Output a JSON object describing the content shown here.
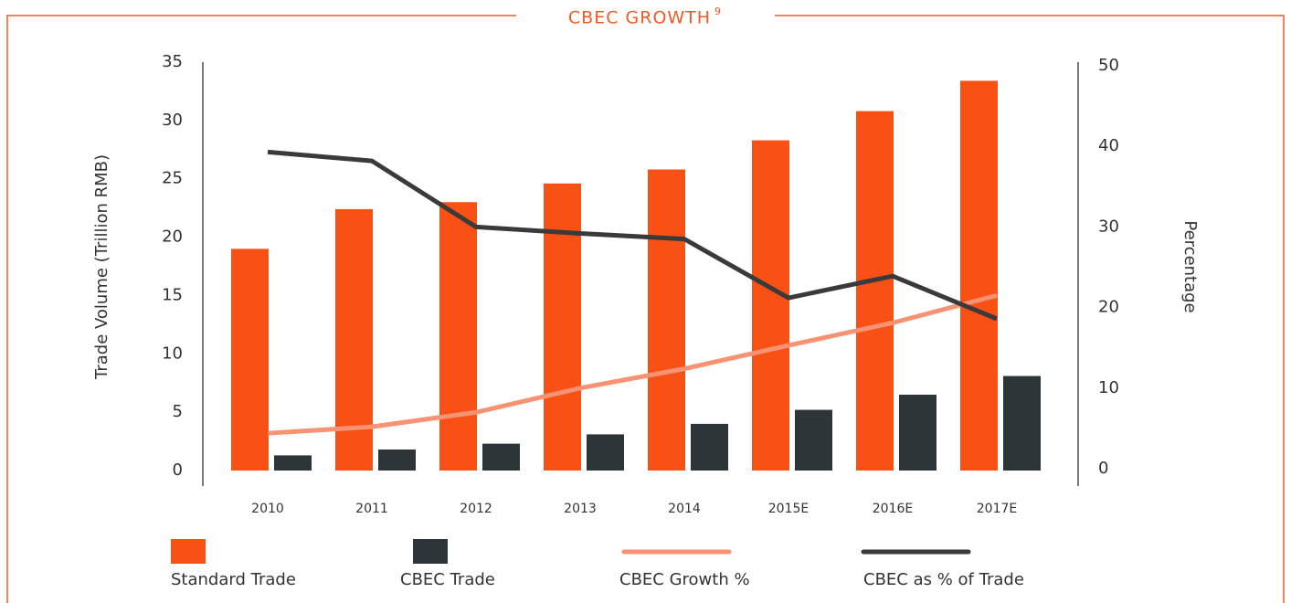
{
  "chart_data": {
    "type": "combo",
    "title": "CBEC GROWTH",
    "title_footnote": "9",
    "y_label": "Trade Volume (Trillion RMB)",
    "y2_label": "Percentage",
    "categories": [
      "2010",
      "2011",
      "2012",
      "2013",
      "2014",
      "2015E",
      "2016E",
      "2017E"
    ],
    "series": [
      {
        "name": "Standard Trade",
        "type": "bar",
        "color": "#f95016",
        "axis": "y",
        "values": [
          19.0,
          22.4,
          23.0,
          24.6,
          25.8,
          28.3,
          30.8,
          33.4
        ]
      },
      {
        "name": "CBEC Trade",
        "type": "bar",
        "color": "#2d3539",
        "axis": "y",
        "values": [
          1.3,
          1.8,
          2.3,
          3.1,
          4.0,
          5.2,
          6.5,
          8.1
        ]
      },
      {
        "name": "CBEC Growth %",
        "type": "line",
        "color": "#f79272",
        "axis": "y2",
        "values": [
          4.4,
          5.2,
          7.0,
          10.0,
          12.4,
          15.3,
          18.1,
          21.5
        ]
      },
      {
        "name": "CBEC as % of Trade",
        "type": "line",
        "color": "#3a3a3a",
        "axis": "y2",
        "values": [
          39.3,
          38.2,
          30.0,
          29.2,
          28.5,
          21.2,
          23.9,
          18.6
        ]
      }
    ],
    "ylim": [
      0,
      35
    ],
    "yticks": [
      0,
      5,
      10,
      15,
      20,
      25,
      30,
      35
    ],
    "y2lim": [
      0,
      50
    ],
    "y2ticks": [
      0,
      10,
      20,
      30,
      40,
      50
    ],
    "grid": false,
    "legend": "bottom"
  }
}
